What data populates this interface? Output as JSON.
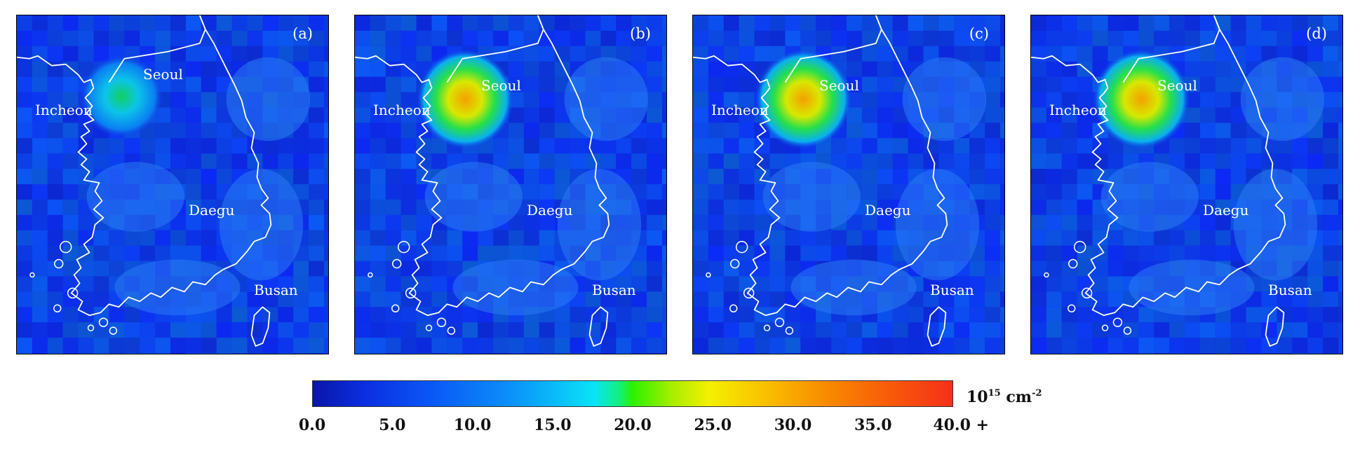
{
  "panels": [
    {
      "label": "(a)",
      "hotspot": "low"
    },
    {
      "label": "(b)",
      "hotspot": "high"
    },
    {
      "label": "(c)",
      "hotspot": "high"
    },
    {
      "label": "(d)",
      "hotspot": "high"
    }
  ],
  "cities": {
    "seoul": "Seoul",
    "incheon": "Incheon",
    "daegu": "Daegu",
    "busan": "Busan"
  },
  "colorbar": {
    "ticks": [
      "0.0",
      "5.0",
      "10.0",
      "15.0",
      "20.0",
      "25.0",
      "30.0",
      "35.0",
      "40.0"
    ],
    "max_suffix": "+",
    "unit_base": "10",
    "unit_exp": "15",
    "unit_text": " cm",
    "unit_exp2": "-2",
    "range": [
      0,
      40
    ],
    "colors": [
      "#0a16a8",
      "#0b2ee0",
      "#0a55f5",
      "#0b8cf8",
      "#09e4f6",
      "#2cf000",
      "#f4f000",
      "#f98c00",
      "#f5301a"
    ]
  }
}
